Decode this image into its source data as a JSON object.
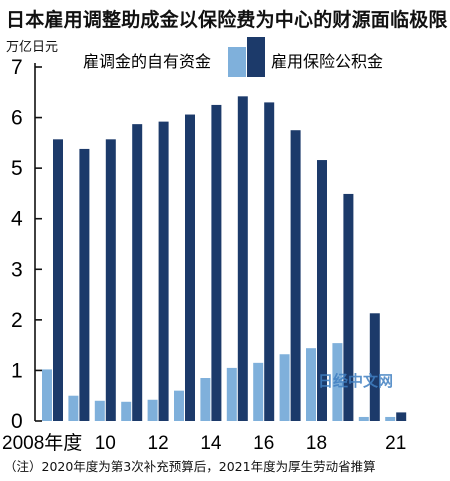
{
  "title": "日本雇用调整助成金以保险费为中心的财源面临极限",
  "unit_label": "万亿日元",
  "footnote": "（注）2020年度为第3次补充预算后，2021年度为厚生劳动省推算",
  "watermark": "日经中文网",
  "colors": {
    "series_light": "#7fb0db",
    "series_dark": "#1c3a6a",
    "axis": "#111111",
    "watermark": "#3f7fc1"
  },
  "chart_data": {
    "type": "bar",
    "title": "日本雇用调整助成金以保险费为中心的财源面临极限",
    "ylabel": "万亿日元",
    "ylim": [
      0,
      7
    ],
    "yticks": [
      0,
      1,
      2,
      3,
      4,
      5,
      6,
      7
    ],
    "grid": false,
    "legend_position": "top",
    "categories": [
      "2008",
      "2009",
      "2010",
      "2011",
      "2012",
      "2013",
      "2014",
      "2015",
      "2016",
      "2017",
      "2018",
      "2019",
      "2020",
      "2021"
    ],
    "x_tick_labels": [
      {
        "index": 0,
        "label": "2008年度"
      },
      {
        "index": 2,
        "label": "10"
      },
      {
        "index": 4,
        "label": "12"
      },
      {
        "index": 6,
        "label": "14"
      },
      {
        "index": 8,
        "label": "16"
      },
      {
        "index": 10,
        "label": "18"
      },
      {
        "index": 13,
        "label": "21"
      }
    ],
    "series": [
      {
        "name": "雇调金的自有资金",
        "color_key": "series_light",
        "values": [
          1.02,
          0.5,
          0.4,
          0.38,
          0.42,
          0.6,
          0.85,
          1.05,
          1.15,
          1.32,
          1.44,
          1.54,
          0.08,
          0.08
        ]
      },
      {
        "name": "雇用保险公积金",
        "color_key": "series_dark",
        "values": [
          5.57,
          5.38,
          5.57,
          5.87,
          5.92,
          6.06,
          6.25,
          6.42,
          6.3,
          5.75,
          5.16,
          4.49,
          2.13,
          0.17
        ]
      }
    ]
  }
}
